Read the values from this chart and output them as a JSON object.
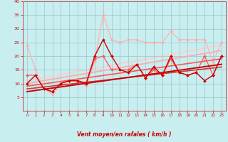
{
  "bg_color": "#c8eef0",
  "grid_color": "#a0ccd0",
  "xlabel": "Vent moyen/en rafales ( km/h )",
  "xlim": [
    -0.5,
    23.5
  ],
  "ylim": [
    0,
    40
  ],
  "yticks": [
    5,
    10,
    15,
    20,
    25,
    30,
    35,
    40
  ],
  "xticks": [
    0,
    1,
    2,
    3,
    4,
    5,
    6,
    7,
    8,
    9,
    10,
    11,
    12,
    13,
    14,
    15,
    16,
    17,
    18,
    19,
    20,
    21,
    22,
    23
  ],
  "lines": [
    {
      "x": [
        0,
        1,
        2,
        3,
        4,
        5,
        6,
        7,
        8,
        9,
        10,
        11,
        12,
        13,
        14,
        15,
        16,
        17,
        18,
        19,
        20,
        21,
        22,
        23
      ],
      "y": [
        24,
        15,
        8,
        6,
        9,
        11,
        11,
        9,
        18,
        35,
        26,
        25,
        26,
        26,
        25,
        25,
        25,
        29,
        26,
        26,
        26,
        26,
        18,
        25
      ],
      "color": "#ffaaaa",
      "lw": 0.8,
      "marker": "D",
      "ms": 2.0,
      "alpha": 0.85,
      "zorder": 2
    },
    {
      "x": [
        0,
        1,
        2,
        3,
        4,
        5,
        6,
        7,
        8,
        9,
        10,
        11,
        12,
        13,
        14,
        15,
        16,
        17,
        18,
        19,
        20,
        21,
        22,
        23
      ],
      "y": [
        24,
        15,
        8,
        6,
        9,
        11,
        11,
        9,
        19,
        37,
        26,
        25,
        26,
        26,
        25,
        25,
        25,
        29,
        26,
        26,
        26,
        26,
        18,
        25
      ],
      "color": "#ffcccc",
      "lw": 0.7,
      "marker": "D",
      "ms": 2.0,
      "alpha": 0.7,
      "zorder": 1
    },
    {
      "x": [
        0,
        1,
        2,
        3,
        4,
        5,
        6,
        7,
        8,
        9,
        10,
        11,
        12,
        13,
        14,
        15,
        16,
        17,
        18,
        19,
        20,
        21,
        22,
        23
      ],
      "y": [
        13,
        13,
        8,
        7,
        10,
        11,
        11,
        10,
        19,
        20,
        15,
        15,
        15,
        17,
        12,
        15,
        13,
        19,
        14,
        13,
        14,
        20,
        13,
        20
      ],
      "color": "#ff5555",
      "lw": 0.9,
      "marker": "D",
      "ms": 2.0,
      "alpha": 1.0,
      "zorder": 3
    },
    {
      "x": [
        0,
        1,
        2,
        3,
        4,
        5,
        6,
        7,
        8,
        9,
        10,
        11,
        12,
        13,
        14,
        15,
        16,
        17,
        18,
        19,
        20,
        21,
        22,
        23
      ],
      "y": [
        10,
        13,
        8,
        7,
        10,
        11,
        11,
        10,
        20,
        26,
        20,
        15,
        14,
        17,
        12,
        16,
        13,
        20,
        14,
        13,
        14,
        11,
        13,
        20
      ],
      "color": "#cc0000",
      "lw": 1.0,
      "marker": "D",
      "ms": 2.0,
      "alpha": 1.0,
      "zorder": 4
    },
    {
      "x": [
        0,
        23
      ],
      "y": [
        10,
        22
      ],
      "color": "#ffaaaa",
      "lw": 1.3,
      "marker": null,
      "ms": 0,
      "alpha": 1.0,
      "zorder": 2
    },
    {
      "x": [
        0,
        23
      ],
      "y": [
        11,
        24
      ],
      "color": "#ffcccc",
      "lw": 1.3,
      "marker": null,
      "ms": 0,
      "alpha": 1.0,
      "zorder": 1
    },
    {
      "x": [
        0,
        23
      ],
      "y": [
        9,
        19
      ],
      "color": "#ff5555",
      "lw": 1.2,
      "marker": null,
      "ms": 0,
      "alpha": 1.0,
      "zorder": 3
    },
    {
      "x": [
        0,
        23
      ],
      "y": [
        7,
        17
      ],
      "color": "#cc0000",
      "lw": 1.4,
      "marker": null,
      "ms": 0,
      "alpha": 1.0,
      "zorder": 4
    },
    {
      "x": [
        0,
        23
      ],
      "y": [
        8,
        16
      ],
      "color": "#dd3333",
      "lw": 1.2,
      "marker": null,
      "ms": 0,
      "alpha": 1.0,
      "zorder": 3
    }
  ],
  "wind_symbols": [
    "↙",
    "↙",
    "→",
    "↗",
    "↗",
    "→",
    "↘",
    "↘",
    "↓",
    "↓",
    "↓",
    "↓",
    "↓",
    "↓",
    "↓",
    "↓",
    "↓",
    "↙",
    "↙",
    "↓",
    "↓",
    "↓",
    "↓",
    "↓"
  ]
}
